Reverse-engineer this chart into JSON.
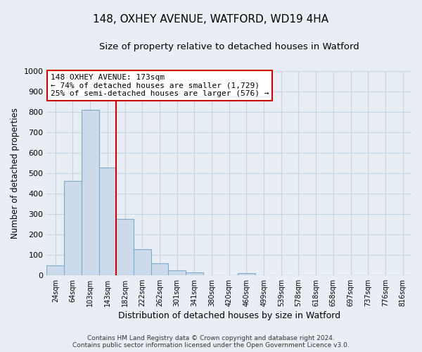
{
  "title": "148, OXHEY AVENUE, WATFORD, WD19 4HA",
  "subtitle": "Size of property relative to detached houses in Watford",
  "xlabel": "Distribution of detached houses by size in Watford",
  "ylabel": "Number of detached properties",
  "bar_color": "#ccdaeb",
  "bar_edge_color": "#7eaac8",
  "vline_color": "#cc0000",
  "vline_x_index": 4,
  "annotation_title": "148 OXHEY AVENUE: 173sqm",
  "annotation_line1": "← 74% of detached houses are smaller (1,729)",
  "annotation_line2": "25% of semi-detached houses are larger (576) →",
  "annotation_box_color": "#ffffff",
  "annotation_box_edge_color": "#cc0000",
  "categories": [
    "24sqm",
    "64sqm",
    "103sqm",
    "143sqm",
    "182sqm",
    "222sqm",
    "262sqm",
    "301sqm",
    "341sqm",
    "380sqm",
    "420sqm",
    "460sqm",
    "499sqm",
    "539sqm",
    "578sqm",
    "618sqm",
    "658sqm",
    "697sqm",
    "737sqm",
    "776sqm",
    "816sqm"
  ],
  "values": [
    47,
    460,
    810,
    525,
    275,
    125,
    58,
    22,
    12,
    0,
    0,
    8,
    0,
    0,
    0,
    0,
    0,
    0,
    0,
    0,
    0
  ],
  "ylim": [
    0,
    1000
  ],
  "yticks": [
    0,
    100,
    200,
    300,
    400,
    500,
    600,
    700,
    800,
    900,
    1000
  ],
  "footer_line1": "Contains HM Land Registry data © Crown copyright and database right 2024.",
  "footer_line2": "Contains public sector information licensed under the Open Government Licence v3.0.",
  "bg_color": "#e8eef4",
  "plot_bg_color": "#e8eef4",
  "grid_color": "#c8d4e0"
}
